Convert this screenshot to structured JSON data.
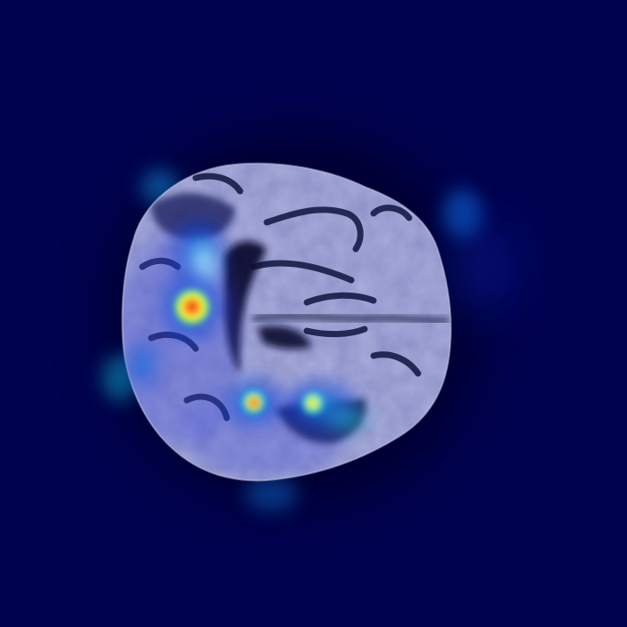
{
  "image": {
    "description_type": "MRI brain slice with heatmap overlay",
    "background_color": "#00024f",
    "colormap": [
      "#00024f",
      "#0a2fd6",
      "#25c7e6",
      "#8dff52",
      "#fff23a",
      "#ff7a1a",
      "#e3121a"
    ]
  },
  "heatmap": {
    "hotspots": [
      {
        "name": "primary-hotspot",
        "intensity": 1.0
      },
      {
        "name": "posterior-hotspot-left",
        "intensity": 0.55
      },
      {
        "name": "posterior-hotspot-right",
        "intensity": 0.5
      },
      {
        "name": "frontal-diffuse",
        "intensity": 0.4
      },
      {
        "name": "lateral-diffuse",
        "intensity": 0.3
      }
    ]
  }
}
